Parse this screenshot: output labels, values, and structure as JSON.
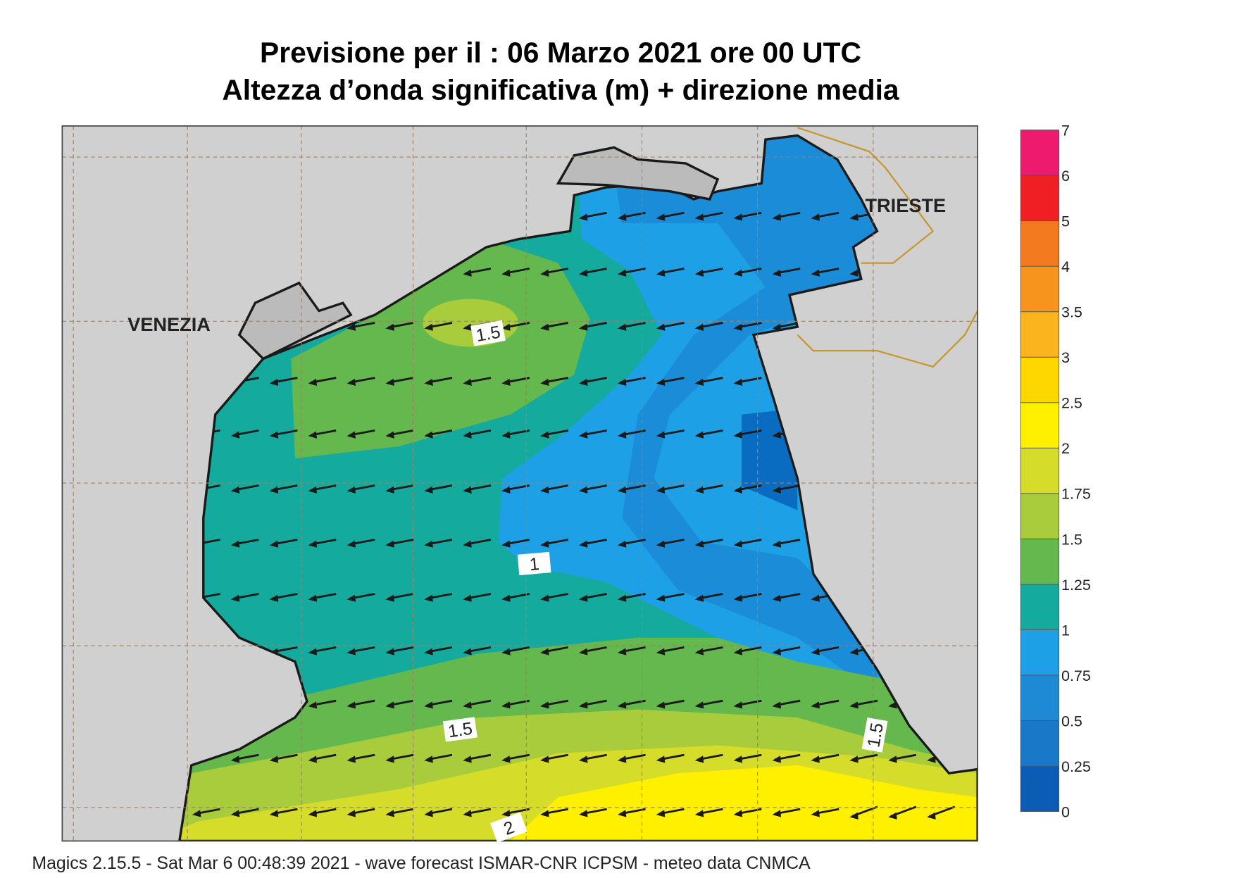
{
  "header": {
    "title": "Previsione per il  :  06   Marzo   2021   ore 00 UTC",
    "subtitle": "Altezza d’onda significativa (m) + direzione media"
  },
  "map": {
    "cities": [
      "VENEZIA",
      "TRIESTE"
    ],
    "contour_labels": [
      "1.5",
      "1",
      "1.5",
      "1.5",
      "2"
    ]
  },
  "colorbar": {
    "labels": [
      "0",
      "0.25",
      "0.5",
      "0.75",
      "1",
      "1.25",
      "1.5",
      "1.75",
      "2",
      "2.5",
      "3",
      "3.5",
      "4",
      "5",
      "6",
      "7"
    ],
    "colors": [
      "#0a5cb4",
      "#1a78c8",
      "#1e8ad6",
      "#1ea0e6",
      "#14aa9e",
      "#64b84e",
      "#a8cc3c",
      "#d6dc2a",
      "#fff000",
      "#ffd700",
      "#fbb41e",
      "#f7941e",
      "#f47a20",
      "#ee2024",
      "#ee1a6e"
    ]
  },
  "footer": "Magics 2.15.5 - Sat Mar  6 00:48:39 2021 - wave forecast  ISMAR-CNR  ICPSM - meteo data    CNMCA"
}
